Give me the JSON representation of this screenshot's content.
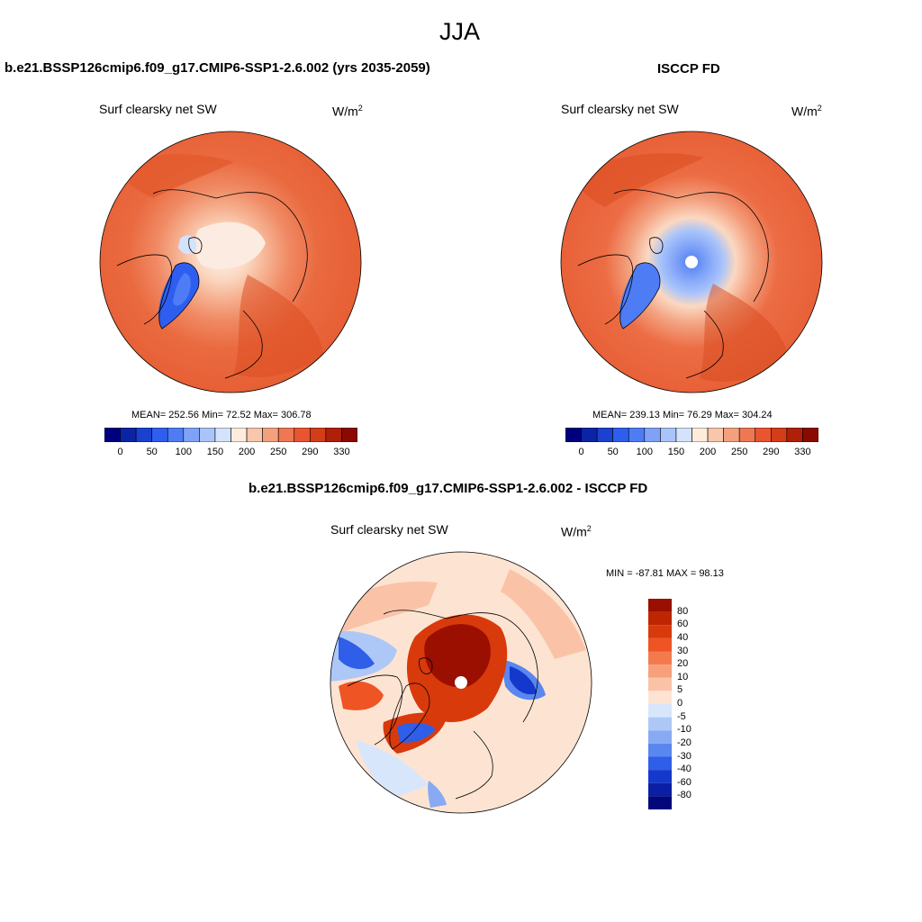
{
  "main_title": "JJA",
  "panels": [
    {
      "title": "b.e21.BSSP126cmip6.f09_g17.CMIP6-SSP1-2.6.002 (yrs 2035-2059)",
      "variable": "Surf clearsky net SW",
      "units_base": "W/m",
      "units_exp": "2",
      "stats": "MEAN= 252.56  Min=  72.52  Max= 306.78"
    },
    {
      "title": "ISCCP FD",
      "variable": "Surf clearsky net SW",
      "units_base": "W/m",
      "units_exp": "2",
      "stats": "MEAN= 239.13  Min=  76.29  Max= 304.24"
    },
    {
      "title": "b.e21.BSSP126cmip6.f09_g17.CMIP6-SSP1-2.6.002 - ISCCP FD",
      "variable": "Surf clearsky net SW",
      "units_base": "W/m",
      "units_exp": "2",
      "stats": "MIN = -87.81 MAX =  98.13"
    }
  ],
  "abs_colorbar": {
    "colors": [
      "#00007f",
      "#0b24a6",
      "#1a41cf",
      "#2d5ef0",
      "#4d7cf5",
      "#7fa2f8",
      "#a9c4fa",
      "#d4e3fc",
      "#fdebdc",
      "#f8c6aa",
      "#f3a07e",
      "#ef7753",
      "#ea5430",
      "#d43d17",
      "#b02008",
      "#8a0a00"
    ],
    "tick_labels": [
      "0",
      "50",
      "100",
      "150",
      "200",
      "250",
      "290",
      "330"
    ]
  },
  "diff_colorbar": {
    "colors": [
      "#9a0f00",
      "#bd2600",
      "#d83a0c",
      "#ee5424",
      "#f47a4e",
      "#f7a07c",
      "#fac3a8",
      "#fde4d2",
      "#d7e6fb",
      "#adc8f7",
      "#88aaf3",
      "#5a86f0",
      "#2f5ee8",
      "#1438cc",
      "#0a1fa4",
      "#02087a"
    ],
    "tick_labels": [
      "80",
      "60",
      "40",
      "30",
      "20",
      "10",
      "5",
      "0",
      "-5",
      "-10",
      "-20",
      "-30",
      "-40",
      "-60",
      "-80"
    ]
  }
}
